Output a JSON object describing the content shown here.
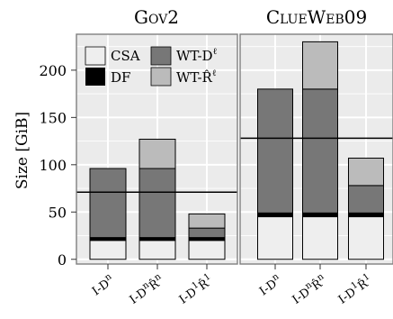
{
  "chart_data": [
    {
      "type": "bar",
      "stacked": true,
      "title": "Gov2",
      "categories": [
        "I-D^n",
        "I-D^n R̂^n",
        "I-D^1 R̂^1"
      ],
      "series": [
        {
          "name": "CSA",
          "color": "#eeeeee",
          "values": [
            20,
            20,
            20
          ]
        },
        {
          "name": "DF",
          "color": "#000000",
          "values": [
            3,
            3,
            3
          ]
        },
        {
          "name": "WT-D^ℓ",
          "color": "#777777",
          "values": [
            73,
            73,
            10
          ]
        },
        {
          "name": "WT-R̂^ℓ",
          "color": "#bbbbbb",
          "values": [
            0,
            31,
            15
          ]
        }
      ],
      "reference_line": 71,
      "ylabel": "Size [GiB]",
      "ylim": [
        -5,
        238
      ],
      "yticks": [
        0,
        50,
        100,
        150,
        200
      ],
      "grid": true,
      "legend": "top-left"
    },
    {
      "type": "bar",
      "stacked": true,
      "title": "ClueWeb09",
      "categories": [
        "I-D^n",
        "I-D^n R̂^n",
        "I-D^1 R̂^1"
      ],
      "series": [
        {
          "name": "CSA",
          "color": "#eeeeee",
          "values": [
            45,
            45,
            45
          ]
        },
        {
          "name": "DF",
          "color": "#000000",
          "values": [
            4,
            4,
            4
          ]
        },
        {
          "name": "WT-D^ℓ",
          "color": "#777777",
          "values": [
            131,
            131,
            29
          ]
        },
        {
          "name": "WT-R̂^ℓ",
          "color": "#bbbbbb",
          "values": [
            0,
            50,
            29
          ]
        }
      ],
      "reference_line": 128,
      "ylim": [
        -5,
        238
      ],
      "grid": true
    }
  ],
  "panel_titles": [
    "Gov2",
    "ClueWeb09"
  ],
  "y_axis_label": "Size [GiB]",
  "y_tick_labels": [
    "0",
    "50",
    "100",
    "150",
    "200"
  ],
  "x_tick_labels": [
    {
      "base": "I-D",
      "sup1": "n",
      "mid": "",
      "sup2": ""
    },
    {
      "base": "I-D",
      "sup1": "n",
      "mid": "R̂",
      "sup2": "n"
    },
    {
      "base": "I-D",
      "sup1": "1",
      "mid": "R̂",
      "sup2": "1"
    }
  ],
  "legend": {
    "left": [
      {
        "label": "CSA",
        "color": "#eeeeee"
      },
      {
        "label": "DF",
        "color": "#000000"
      }
    ],
    "right": [
      {
        "label": "WT-D",
        "sup": "ℓ",
        "color": "#777777"
      },
      {
        "label": "WT-R̂",
        "sup": "ℓ",
        "color": "#bbbbbb"
      }
    ]
  },
  "colors": {
    "panel_bg": "#ebebeb",
    "grid": "#ffffff",
    "border": "#7f7f7f"
  }
}
